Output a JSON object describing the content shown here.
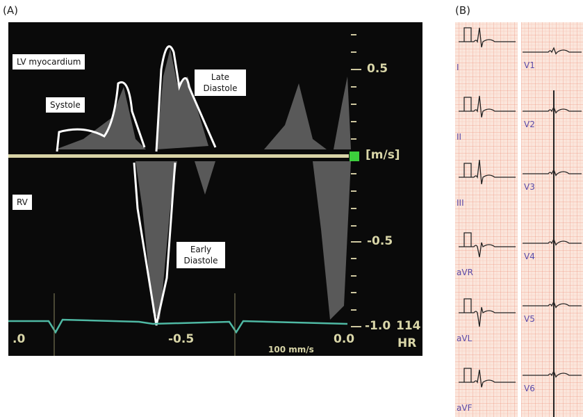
{
  "panel_a": {
    "label": "(A)",
    "annotations": [
      "LV myocardium",
      "Systole",
      "Late Diastole",
      "RV",
      "Early Diastole"
    ],
    "velocity_scale": [
      "0.5",
      "[m/s]",
      "-0.5",
      "-1.0"
    ],
    "time_scale": [
      ".0",
      "-0.5",
      "0.0"
    ],
    "heart_rate": "114",
    "hr_label": "HR",
    "sweep_speed": "100 mm/s"
  },
  "panel_b": {
    "label": "(B)",
    "limb_leads": [
      "I",
      "II",
      "III",
      "aVR",
      "aVL",
      "aVF"
    ],
    "chest_leads": [
      "V1",
      "V2",
      "V3",
      "V4",
      "V5",
      "V6"
    ]
  }
}
